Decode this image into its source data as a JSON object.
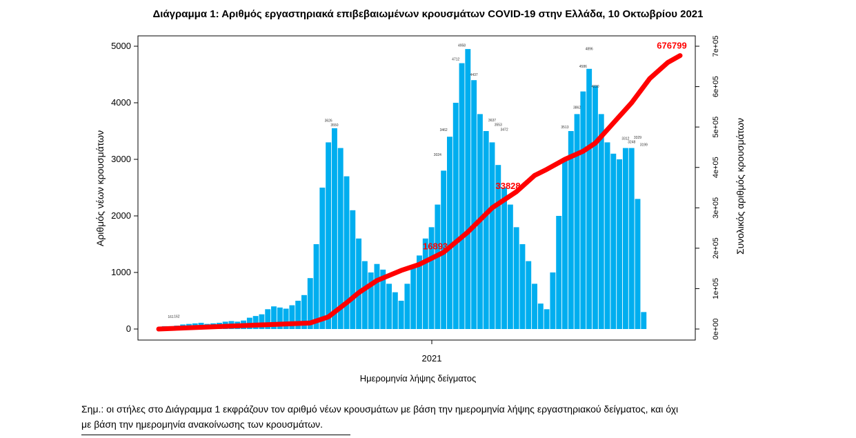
{
  "chart_data": {
    "type": "bar",
    "title": "Διάγραμμα 1: Αριθμός εργαστηριακά επιβεβαιωμένων κρουσμάτων COVID-19 στην Ελλάδα, 10 Οκτωβρίου 2021",
    "xlabel": "Ημερομηνία λήψης δείγματος",
    "ylabel": "Αριθμός νέων κρουσμάτων",
    "y2label": "Συνολικός αριθμός κρουσμάτων",
    "x_tick_labels": [
      "2021"
    ],
    "ylim": [
      0,
      5000
    ],
    "y_ticks": [
      0,
      1000,
      2000,
      3000,
      4000,
      5000
    ],
    "y2lim": [
      0,
      700000
    ],
    "y2_tick_labels": [
      "0e+00",
      "1e+05",
      "2e+05",
      "3e+05",
      "4e+05",
      "5e+05",
      "6e+05",
      "7e+05"
    ],
    "series": [
      {
        "kind": "bar",
        "axis": "left",
        "color": "#00aeef",
        "weekly_values": [
          0,
          50,
          50,
          60,
          80,
          90,
          100,
          110,
          90,
          100,
          110,
          130,
          140,
          130,
          150,
          200,
          230,
          260,
          350,
          400,
          380,
          360,
          420,
          500,
          600,
          900,
          1500,
          2500,
          3300,
          3550,
          3200,
          2700,
          2100,
          1600,
          1200,
          1000,
          1150,
          1050,
          800,
          650,
          500,
          800,
          1100,
          1300,
          1600,
          1800,
          2200,
          2800,
          3400,
          4000,
          4700,
          4950,
          4400,
          3800,
          3500,
          3300,
          2900,
          2500,
          2200,
          1800,
          1500,
          1200,
          800,
          450,
          350,
          1000,
          2000,
          3000,
          3500,
          3800,
          4200,
          4600,
          4300,
          3800,
          3300,
          3100,
          3000,
          3200,
          3200,
          2300,
          300
        ]
      },
      {
        "kind": "line",
        "axis": "right",
        "color": "#ff0000",
        "points": [
          [
            0,
            0
          ],
          [
            25,
            15000
          ],
          [
            28,
            30000
          ],
          [
            31,
            65000
          ],
          [
            33,
            90000
          ],
          [
            36,
            120000
          ],
          [
            40,
            145000
          ],
          [
            43,
            160000
          ],
          [
            47,
            190000
          ],
          [
            51,
            240000
          ],
          [
            55,
            300000
          ],
          [
            59,
            340000
          ],
          [
            62,
            380000
          ],
          [
            64,
            395000
          ],
          [
            67,
            420000
          ],
          [
            70,
            440000
          ],
          [
            72,
            460000
          ],
          [
            75,
            510000
          ],
          [
            78,
            560000
          ],
          [
            81,
            620000
          ],
          [
            84,
            660000
          ],
          [
            86,
            676799
          ]
        ]
      }
    ],
    "labels": {
      "peak_labels": [
        "3626",
        "3550",
        "4958",
        "4712",
        "4437",
        "4896",
        "4586",
        "4230",
        "3862",
        "3513",
        "3312",
        "3329",
        "3248",
        "3199",
        "3637",
        "3553",
        "3472",
        "3462",
        "3024",
        "161",
        "162"
      ],
      "cumulative_labels": [
        "16893",
        "33828",
        "676799"
      ]
    }
  },
  "note": {
    "line1": "Σημ.: οι στήλες στο Διάγραμμα 1 εκφράζουν τον αριθμό νέων κρουσμάτων με βάση την ημερομηνία λήψης εργαστηριακού δείγματος, και όχι",
    "line2": "με βάση την ημερομηνία ανακοίνωσης των κρουσμάτων."
  }
}
